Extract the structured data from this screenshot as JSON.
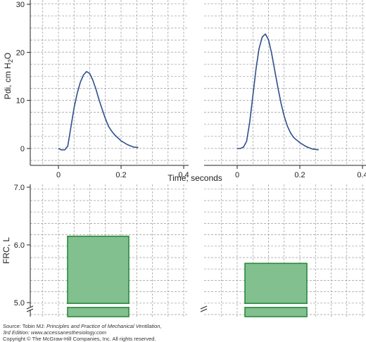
{
  "chart_data": [
    {
      "type": "line",
      "panel": "top-left",
      "xlim": [
        -0.08,
        0.4
      ],
      "ylim": [
        -2,
        30
      ],
      "xticks": [
        "0",
        "0.2",
        "0.4"
      ],
      "yticks": [
        "0",
        "10",
        "20",
        "30"
      ],
      "ylabel": "Pdi, cm H2O",
      "series": [
        {
          "x": [
            0,
            0.01,
            0.02,
            0.03,
            0.04,
            0.05,
            0.06,
            0.07,
            0.08,
            0.09,
            0.1,
            0.11,
            0.12,
            0.13,
            0.14,
            0.15,
            0.16,
            0.17,
            0.18,
            0.19,
            0.2,
            0.22,
            0.24,
            0.255
          ],
          "y": [
            0,
            -0.3,
            -0.3,
            0.5,
            4.5,
            8.5,
            11.5,
            13.8,
            15.3,
            16,
            15.6,
            14.2,
            12.3,
            10.1,
            8.1,
            6.2,
            4.6,
            3.6,
            2.8,
            2.2,
            1.6,
            0.8,
            0.3,
            0.2
          ]
        }
      ]
    },
    {
      "type": "line",
      "panel": "top-right",
      "xlim": [
        -0.08,
        0.4
      ],
      "ylim": [
        -2,
        30
      ],
      "xticks": [
        "0",
        "0.2",
        "0.4"
      ],
      "xlabel": "Time, seconds",
      "series": [
        {
          "x": [
            0,
            0.01,
            0.02,
            0.03,
            0.04,
            0.05,
            0.06,
            0.07,
            0.08,
            0.09,
            0.1,
            0.11,
            0.12,
            0.13,
            0.14,
            0.15,
            0.16,
            0.17,
            0.18,
            0.2,
            0.22,
            0.24,
            0.26
          ],
          "y": [
            0,
            0,
            0.3,
            1.5,
            5.5,
            11,
            16.5,
            20.8,
            23.2,
            23.8,
            22.6,
            19.8,
            16.2,
            12.6,
            9.4,
            6.7,
            4.7,
            3.3,
            2.3,
            1.2,
            0.4,
            -0.1,
            -0.3
          ]
        }
      ]
    },
    {
      "type": "bar",
      "panel": "bottom-left",
      "ylim": [
        4.9,
        7.0
      ],
      "yticks": [
        "5.0",
        "6.0",
        "7.0"
      ],
      "ylabel": "FRC, L",
      "axis_break": true,
      "values": [
        6.15
      ]
    },
    {
      "type": "bar",
      "panel": "bottom-right",
      "ylim": [
        4.9,
        7.0
      ],
      "axis_break": true,
      "values": [
        5.68
      ]
    }
  ],
  "colors": {
    "line": "#2e4f8c",
    "bar_fill": "#82c08f",
    "bar_edge": "#2a8a3c",
    "grid": "#9a9a9a"
  },
  "source": {
    "line1_prefix": "Source: Tobin MJ: ",
    "line1_title": "Principles and Practice of Mechanical Ventilation,",
    "line2": "3rd Edition: www.accessanesthesiology.com",
    "line3": "Copyright © The McGraw-Hill Companies, Inc. All rights reserved."
  }
}
